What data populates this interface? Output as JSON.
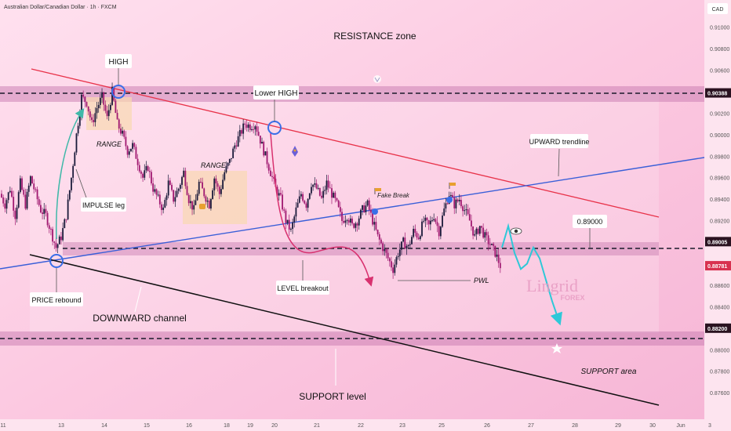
{
  "header": {
    "symbol_info": "Australian Dollar/Canadian Dollar · 1h · FXCM",
    "currency": "CAD"
  },
  "price_scale": {
    "ticks": [
      "0.91000",
      "0.90800",
      "0.90600",
      "0.90200",
      "0.90000",
      "0.89800",
      "0.89600",
      "0.89400",
      "0.89200",
      "0.88600",
      "0.88400",
      "0.88000",
      "0.87800",
      "0.87600"
    ],
    "tick_values": [
      0.91,
      0.908,
      0.906,
      0.902,
      0.9,
      0.898,
      0.896,
      0.894,
      0.892,
      0.886,
      0.884,
      0.88,
      0.878,
      0.876
    ],
    "badges": [
      {
        "label": "0.90388",
        "value": 0.90388,
        "color": "#2a1220"
      },
      {
        "label": "0.89005",
        "value": 0.89005,
        "color": "#2a1220"
      },
      {
        "label": "0.88781",
        "value": 0.88781,
        "color": "#d8314f"
      },
      {
        "label": "0.88200",
        "value": 0.882,
        "color": "#2a1220"
      }
    ]
  },
  "time_scale": {
    "labels": [
      "11",
      "13",
      "14",
      "15",
      "16",
      "18",
      "19",
      "20",
      "21",
      "22",
      "23",
      "25",
      "26",
      "27",
      "28",
      "29",
      "30",
      "Jun",
      "3"
    ]
  },
  "annotations": {
    "resistance_zone": "RESISTANCE zone",
    "high": "HIGH",
    "lower_high": "Lower HIGH",
    "range_1": "RANGE",
    "range_2": "RANGE",
    "impulse_leg": "IMPULSE leg",
    "price_rebound": "PRICE rebound",
    "downward_channel": "DOWNWARD channel",
    "support_level": "SUPPORT level",
    "level_breakout": "LEVEL breakout",
    "fake_break": "Fake Break",
    "pwl": "PWL",
    "upward_trendline": "UPWARD trendline",
    "target_level": "0.89000",
    "support_area": "SUPPORT area"
  },
  "watermark": {
    "brand": "Lingrid",
    "sub": "FOREX"
  },
  "chart_data": {
    "type": "candlestick",
    "title": "",
    "x_dates": [
      "11",
      "13",
      "14",
      "15",
      "16",
      "18",
      "19",
      "20",
      "21",
      "22",
      "23",
      "25",
      "26",
      "27",
      "28",
      "29",
      "30",
      "Jun",
      "3"
    ],
    "ylim": [
      0.8755,
      0.9115
    ],
    "levels": [
      {
        "name": "RESISTANCE zone",
        "value": 0.90388
      },
      {
        "name": "0.89005",
        "value": 0.89005
      },
      {
        "name": "0.88200",
        "value": 0.882
      }
    ],
    "current_price": 0.88781,
    "close_path": [
      0.8945,
      0.8935,
      0.895,
      0.8925,
      0.8955,
      0.8935,
      0.896,
      0.8945,
      0.893,
      0.8925,
      0.891,
      0.8895,
      0.8905,
      0.8925,
      0.896,
      0.9,
      0.9035,
      0.903,
      0.901,
      0.9025,
      0.9035,
      0.9015,
      0.904,
      0.901,
      0.9,
      0.8985,
      0.899,
      0.8975,
      0.896,
      0.897,
      0.895,
      0.894,
      0.893,
      0.8955,
      0.894,
      0.895,
      0.8965,
      0.894,
      0.893,
      0.8955,
      0.8945,
      0.8935,
      0.896,
      0.8945,
      0.8965,
      0.8975,
      0.899,
      0.9,
      0.901,
      0.9008,
      0.901,
      0.8995,
      0.898,
      0.8965,
      0.895,
      0.894,
      0.892,
      0.891,
      0.893,
      0.8945,
      0.8935,
      0.8955,
      0.895,
      0.894,
      0.8955,
      0.8945,
      0.8935,
      0.892,
      0.8925,
      0.8915,
      0.892,
      0.893,
      0.8935,
      0.892,
      0.8905,
      0.8895,
      0.8885,
      0.8875,
      0.889,
      0.89,
      0.8895,
      0.891,
      0.8905,
      0.892,
      0.8915,
      0.8925,
      0.891,
      0.893,
      0.8945,
      0.8935,
      0.894,
      0.893,
      0.892,
      0.8905,
      0.8915,
      0.8905,
      0.8898,
      0.889,
      0.8878
    ],
    "projection": [
      0.8895,
      0.8915,
      0.889,
      0.8875,
      0.888,
      0.8895,
      0.8885,
      0.8865,
      0.8845,
      0.8828
    ]
  }
}
